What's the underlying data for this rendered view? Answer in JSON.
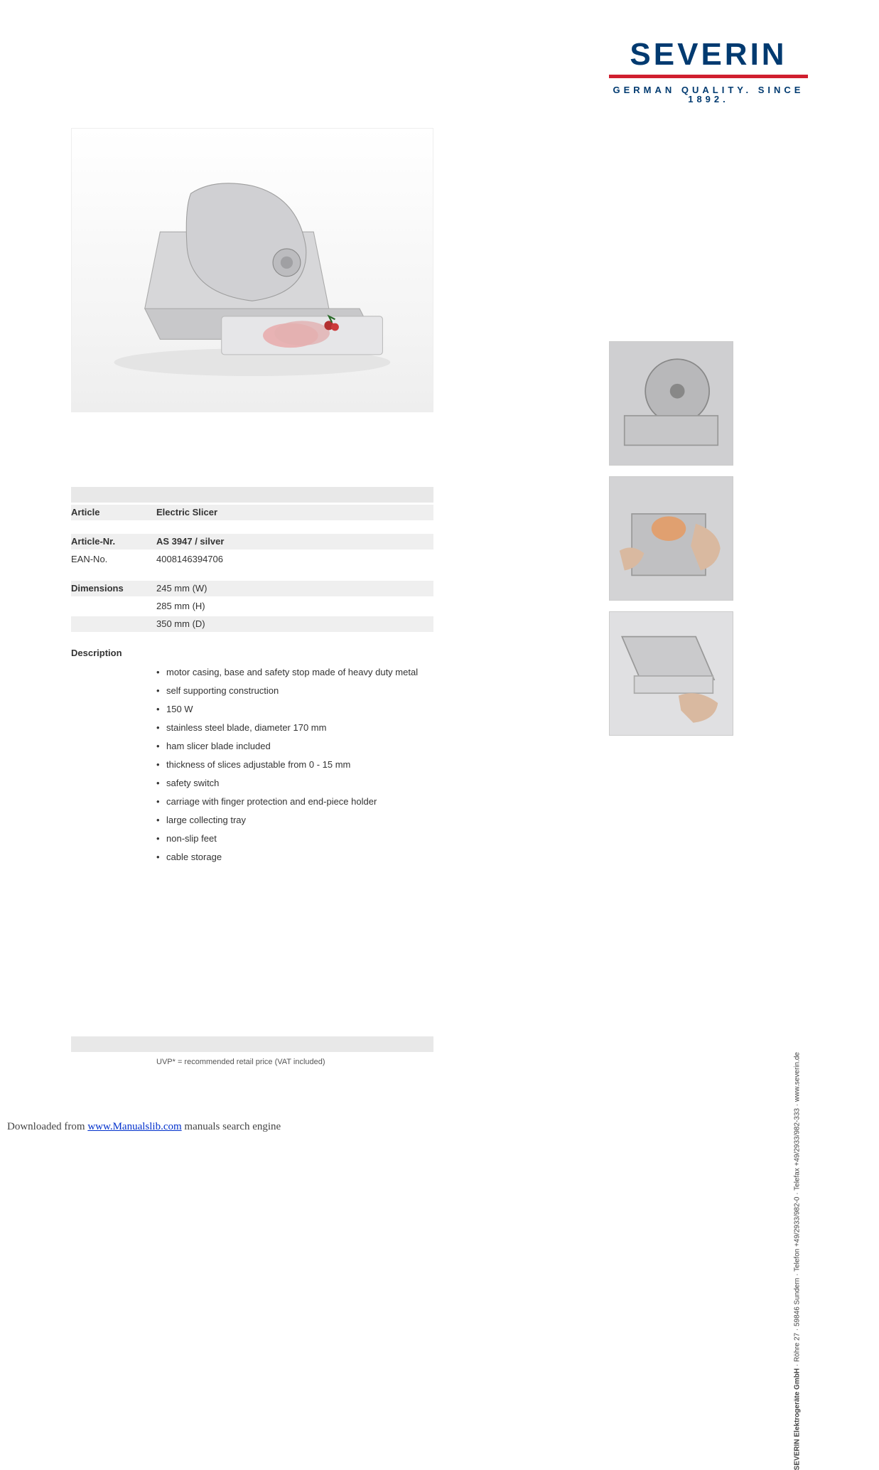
{
  "logo": {
    "brand": "SEVERIN",
    "tagline": "GERMAN QUALITY. SINCE 1892.",
    "brand_color": "#003a70",
    "accent_color": "#d01f2e"
  },
  "specs": {
    "article_label": "Article",
    "article_value": "Electric Slicer",
    "article_nr_label": "Article-Nr.",
    "article_nr_value": "AS 3947 / silver",
    "ean_label": "EAN-No.",
    "ean_value": "4008146394706",
    "dimensions_label": "Dimensions",
    "dim_w": "245 mm (W)",
    "dim_h": "285 mm (H)",
    "dim_d": "350 mm (D)",
    "description_label": "Description",
    "description_items": [
      "motor casing, base and safety stop made of heavy duty metal",
      "self supporting construction",
      "150 W",
      "stainless steel blade, diameter 170 mm",
      "ham slicer blade included",
      "thickness of slices adjustable from 0 - 15 mm",
      "safety switch",
      "carriage with finger protection and end-piece holder",
      "large collecting tray",
      "non-slip feet",
      "cable storage"
    ]
  },
  "uvp_note": "UVP* = recommended retail price (VAT included)",
  "address": {
    "company": "SEVERIN Elektrogeräte GmbH",
    "rest": " · Röhre 27 · 59846 Sundern · Telefon +49/2933/982-0 · Telefax +49/2933/982-333 · www.severin.de"
  },
  "footer": {
    "prefix": "Downloaded from ",
    "link_text": "www.Manualslib.com",
    "link_href": "http://www.manualslib.com",
    "suffix": " manuals search engine"
  },
  "colors": {
    "band": "#efefef",
    "header_bar": "#e8e8e8"
  }
}
